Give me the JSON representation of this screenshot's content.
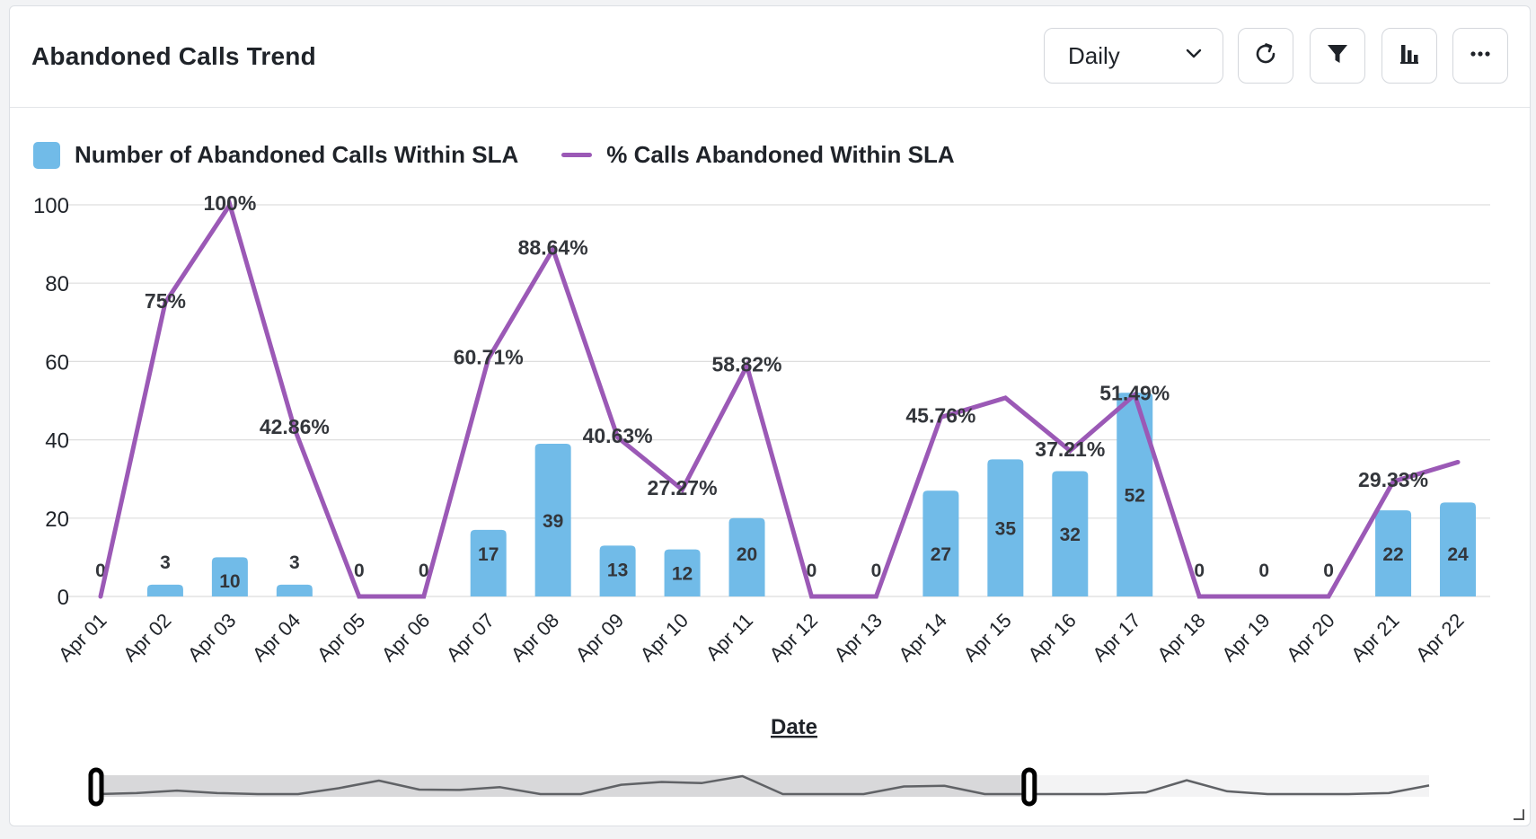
{
  "header": {
    "title": "Abandoned Calls Trend",
    "period": "Daily",
    "icons": [
      "chevron-down-icon",
      "refresh-icon",
      "filter-icon",
      "bar-chart-icon",
      "more-icon"
    ]
  },
  "colors": {
    "bar": "#71bbe8",
    "line": "#9b59b6",
    "grid": "#dedede"
  },
  "chart_data": {
    "type": "bar",
    "xlabel": "Date",
    "ylabel": "",
    "ylim": [
      0,
      100
    ],
    "yticks": [
      0,
      20,
      40,
      60,
      80,
      100
    ],
    "grid": true,
    "legend_position": "top-left",
    "categories": [
      "Apr 01",
      "Apr 02",
      "Apr 03",
      "Apr 04",
      "Apr 05",
      "Apr 06",
      "Apr 07",
      "Apr 08",
      "Apr 09",
      "Apr 10",
      "Apr 11",
      "Apr 12",
      "Apr 13",
      "Apr 14",
      "Apr 15",
      "Apr 16",
      "Apr 17",
      "Apr 18",
      "Apr 19",
      "Apr 20",
      "Apr 21",
      "Apr 22"
    ],
    "series": [
      {
        "name": "Number of Abandoned Calls Within SLA",
        "type": "bar",
        "values": [
          0,
          3,
          10,
          3,
          0,
          0,
          17,
          39,
          13,
          12,
          20,
          0,
          0,
          27,
          35,
          32,
          52,
          0,
          0,
          0,
          22,
          24
        ]
      },
      {
        "name": "% Calls Abandoned Within SLA",
        "type": "line",
        "values": [
          0,
          75,
          100,
          42.86,
          0,
          0,
          60.71,
          88.64,
          40.63,
          27.27,
          58.82,
          0,
          0,
          45.76,
          50.7,
          37.21,
          51.49,
          0,
          0,
          0,
          29.33,
          34.3
        ],
        "labels": [
          "",
          "75%",
          "100%",
          "42.86%",
          "",
          "",
          "60.71%",
          "88.64%",
          "40.63%",
          "27.27%",
          "58.82%",
          "",
          "",
          "45.76%",
          "",
          "37.21%",
          "51.49%",
          "",
          "",
          "",
          "29.33%",
          ""
        ]
      }
    ]
  },
  "navigator": {
    "values": [
      0,
      3,
      10,
      3,
      0,
      0,
      17,
      39,
      13,
      12,
      20,
      0,
      0,
      27,
      35,
      32,
      52,
      0,
      0,
      0,
      22,
      24,
      0,
      0,
      0,
      0,
      5,
      40,
      8,
      0,
      0,
      0,
      3,
      25
    ],
    "selected_fraction": [
      0,
      0.7
    ]
  }
}
